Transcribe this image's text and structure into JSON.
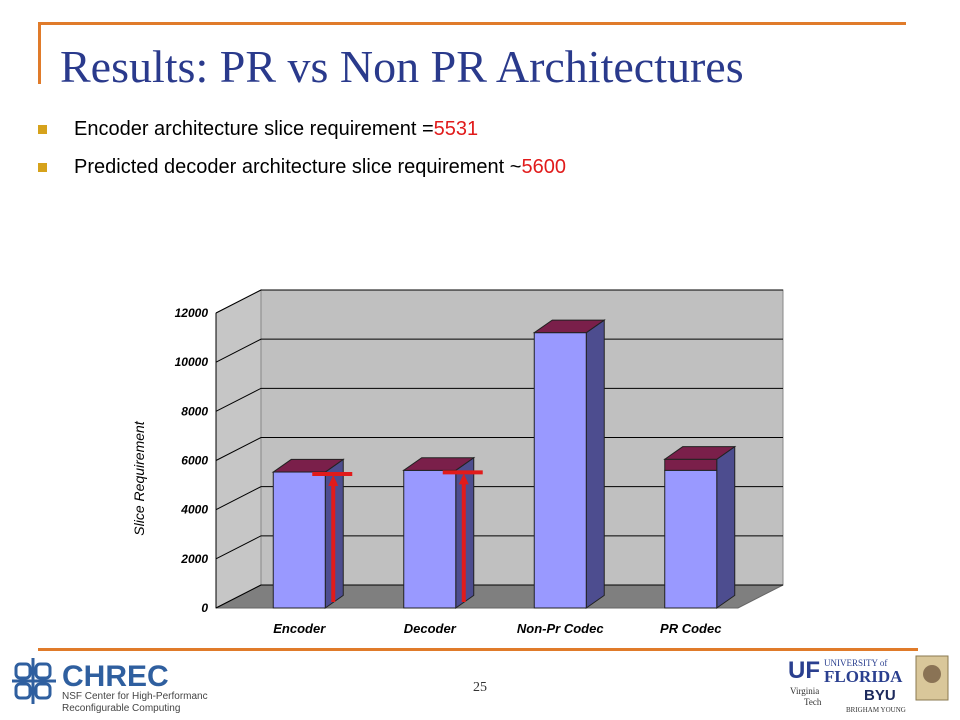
{
  "slide": {
    "title": "Results: PR vs Non PR Architectures",
    "bullets": [
      {
        "text": "Encoder architecture slice requirement = ",
        "value": "5531"
      },
      {
        "text": "Predicted decoder architecture slice requirement ~ ",
        "value": "5600"
      }
    ],
    "page_number": "25"
  },
  "logos": {
    "chrec_name": "CHREC",
    "chrec_sub1": "NSF Center for High-Performance",
    "chrec_sub2": "Reconfigurable Computing",
    "uf_mark": "UF",
    "uf_line1": "UNIVERSITY of",
    "uf_line2": "FLORIDA",
    "vt_line1": "Virginia",
    "vt_line2": "Tech",
    "byu_mark": "BYU",
    "byu_sub": "BRIGHAM YOUNG"
  },
  "colors": {
    "title": "#2a3a8c",
    "bullet": "#d6a21b",
    "highlight": "#e11b1b",
    "frame": "#e07b2a",
    "bar_front": "#9999ff",
    "bar_side": "#4d4d8f",
    "bar_cap": "#7a1f4a",
    "arrow": "#e11b1b"
  },
  "chart_data": {
    "type": "bar",
    "categories": [
      "Encoder",
      "Decoder",
      "Non-Pr Codec",
      "PR Codec"
    ],
    "series": [
      {
        "values": [
          5531,
          5600,
          11200,
          5600
        ]
      },
      {
        "values": [
          0,
          0,
          0,
          450
        ]
      }
    ],
    "ylabel": "Slice Requirement",
    "ylim": [
      0,
      12000
    ],
    "yticks": [
      "0",
      "2000",
      "4000",
      "6000",
      "8000",
      "10000",
      "12000"
    ],
    "grid": true,
    "legend": "none",
    "three_d": true,
    "annotations": [
      {
        "type": "arrow",
        "category": "Encoder",
        "value": 5531
      },
      {
        "type": "arrow",
        "category": "Decoder",
        "value": 5600
      }
    ]
  }
}
